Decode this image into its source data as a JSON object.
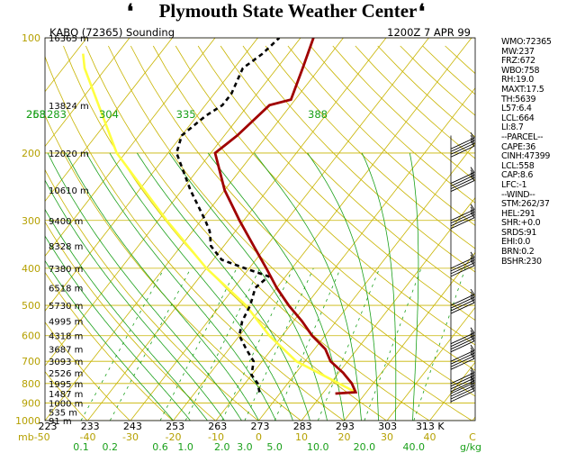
{
  "banner": {
    "title": "Plymouth State Weather Center",
    "left_flag": "❛",
    "right_flag": "❛"
  },
  "header": {
    "station": "KABQ (72365) Sounding",
    "time": "1200Z  7 APR 99"
  },
  "colors": {
    "pressure_label": "#b5a000",
    "isotherm": "#c8b400",
    "dry_adiabat": "#c8b400",
    "moist_adiabat": "#1aa01a",
    "mixing_ratio": "#1aa01a",
    "theta_e_label": "#1aa01a",
    "temperature": "#a00000",
    "dewpoint": "#000000",
    "parcel": "#ffff40",
    "axis": "#000000"
  },
  "side_panel": [
    "WMO:72365",
    "MW:237",
    "FRZ:672",
    "WBO:758",
    "RH:19.0",
    "MAXT:17.5",
    "TH:5639",
    "L57:6.4",
    "LCL:664",
    "LI:8.7",
    "--PARCEL--",
    "CAPE:36",
    "CINH:47399",
    "LCL:558",
    "CAP:8.6",
    "LFC:-1",
    "--WIND--",
    "STM:262/37",
    "HEL:291",
    "SHR:+0.0",
    "SRDS:91",
    "EHI:0.0",
    "BRN:0.2",
    "BSHR:230"
  ],
  "chart_data": {
    "type": "skew-t log-p",
    "title": "KABQ (72365) Sounding",
    "subtitle": "1200Z  7 APR 99",
    "pressure_axis": {
      "unit": "mb",
      "range": [
        1000,
        100
      ],
      "ticks": [
        100,
        200,
        300,
        400,
        500,
        600,
        700,
        800,
        900,
        1000
      ]
    },
    "height_labels": [
      {
        "p": 100,
        "label": "16365 m"
      },
      {
        "p": 150,
        "label": "13824 m"
      },
      {
        "p": 200,
        "label": "12020 m"
      },
      {
        "p": 250,
        "label": "10610 m"
      },
      {
        "p": 300,
        "label": "9400 m"
      },
      {
        "p": 350,
        "label": "8328 m"
      },
      {
        "p": 400,
        "label": "7380 m"
      },
      {
        "p": 450,
        "label": "6518 m"
      },
      {
        "p": 500,
        "label": "5730 m"
      },
      {
        "p": 550,
        "label": "4995 m"
      },
      {
        "p": 600,
        "label": "4318 m"
      },
      {
        "p": 650,
        "label": "3687 m"
      },
      {
        "p": 700,
        "label": "3093 m"
      },
      {
        "p": 750,
        "label": "2526 m"
      },
      {
        "p": 800,
        "label": "1995 m"
      },
      {
        "p": 850,
        "label": "1487 m"
      },
      {
        "p": 900,
        "label": "1000 m"
      },
      {
        "p": 950,
        "label": "535 m"
      },
      {
        "p": 1000,
        "label": "91 m"
      }
    ],
    "temp_axis": {
      "unit": "C",
      "range": [
        -50,
        50
      ],
      "ticks": [
        -50,
        -40,
        -30,
        -20,
        -10,
        0,
        10,
        20,
        30,
        40,
        50
      ],
      "tick_labels": [
        "mb-50",
        "-40",
        "-30",
        "-20",
        "-10",
        "0",
        "10",
        "20",
        "30",
        "40",
        "C"
      ]
    },
    "kelvin_axis": {
      "unit": "K",
      "values": [
        223,
        233,
        243,
        253,
        263,
        273,
        283,
        293,
        303,
        313
      ],
      "labels": [
        "223",
        "233",
        "243",
        "253",
        "263",
        "273",
        "283",
        "293",
        "303",
        "313 K"
      ]
    },
    "mixing_ratio_axis": {
      "unit": "g/kg",
      "values": [
        0.1,
        0.2,
        0.6,
        1.0,
        2.0,
        3.0,
        5.0,
        10.0,
        20.0,
        40.0
      ],
      "labels": [
        "0.1",
        "0.2",
        "0.6",
        "1.0",
        "2.0",
        "3.0",
        "5.0",
        "10.0",
        "20.0",
        "40.0"
      ],
      "unit_label": "g/kg"
    },
    "theta_e_labels": [
      {
        "label": "253",
        "theta": 253
      },
      {
        "label": "268",
        "theta": 268
      },
      {
        "label": "283",
        "theta": 283
      },
      {
        "label": "304",
        "theta": 304
      },
      {
        "label": "335",
        "theta": 335
      },
      {
        "label": "388",
        "theta": 388
      }
    ],
    "temperature_profile": [
      {
        "p": 850,
        "t": 13
      },
      {
        "p": 843,
        "t": 17.5
      },
      {
        "p": 800,
        "t": 15
      },
      {
        "p": 750,
        "t": 11
      },
      {
        "p": 700,
        "t": 6
      },
      {
        "p": 650,
        "t": 2.5
      },
      {
        "p": 600,
        "t": -3
      },
      {
        "p": 550,
        "t": -8
      },
      {
        "p": 500,
        "t": -14
      },
      {
        "p": 450,
        "t": -20
      },
      {
        "p": 400,
        "t": -26
      },
      {
        "p": 350,
        "t": -33
      },
      {
        "p": 300,
        "t": -41
      },
      {
        "p": 250,
        "t": -50
      },
      {
        "p": 200,
        "t": -59
      },
      {
        "p": 180,
        "t": -57
      },
      {
        "p": 150,
        "t": -55
      },
      {
        "p": 145,
        "t": -51
      },
      {
        "p": 120,
        "t": -54
      },
      {
        "p": 100,
        "t": -57
      }
    ],
    "dewpoint_profile": [
      {
        "p": 843,
        "t": -5
      },
      {
        "p": 800,
        "t": -7
      },
      {
        "p": 760,
        "t": -10
      },
      {
        "p": 700,
        "t": -12
      },
      {
        "p": 650,
        "t": -16
      },
      {
        "p": 600,
        "t": -20
      },
      {
        "p": 550,
        "t": -22
      },
      {
        "p": 500,
        "t": -23
      },
      {
        "p": 450,
        "t": -25
      },
      {
        "p": 420,
        "t": -24
      },
      {
        "p": 400,
        "t": -31
      },
      {
        "p": 380,
        "t": -38
      },
      {
        "p": 350,
        "t": -43
      },
      {
        "p": 320,
        "t": -46
      },
      {
        "p": 300,
        "t": -49
      },
      {
        "p": 250,
        "t": -58
      },
      {
        "p": 200,
        "t": -68
      },
      {
        "p": 180,
        "t": -70
      },
      {
        "p": 160,
        "t": -68
      },
      {
        "p": 150,
        "t": -66
      },
      {
        "p": 140,
        "t": -66
      },
      {
        "p": 120,
        "t": -68
      },
      {
        "p": 110,
        "t": -66
      },
      {
        "p": 100,
        "t": -65
      }
    ],
    "parcel_profile": [
      {
        "p": 843,
        "t": 17.5
      },
      {
        "p": 700,
        "t": -2
      },
      {
        "p": 600,
        "t": -13
      },
      {
        "p": 500,
        "t": -24
      },
      {
        "p": 400,
        "t": -40
      },
      {
        "p": 300,
        "t": -58
      },
      {
        "p": 200,
        "t": -82
      },
      {
        "p": 120,
        "t": -105
      },
      {
        "p": 110,
        "t": -108
      }
    ],
    "wind_barb_levels": [
      195,
      240,
      300,
      400,
      500,
      630,
      700,
      800,
      850
    ],
    "grid": true,
    "legend": "none"
  }
}
